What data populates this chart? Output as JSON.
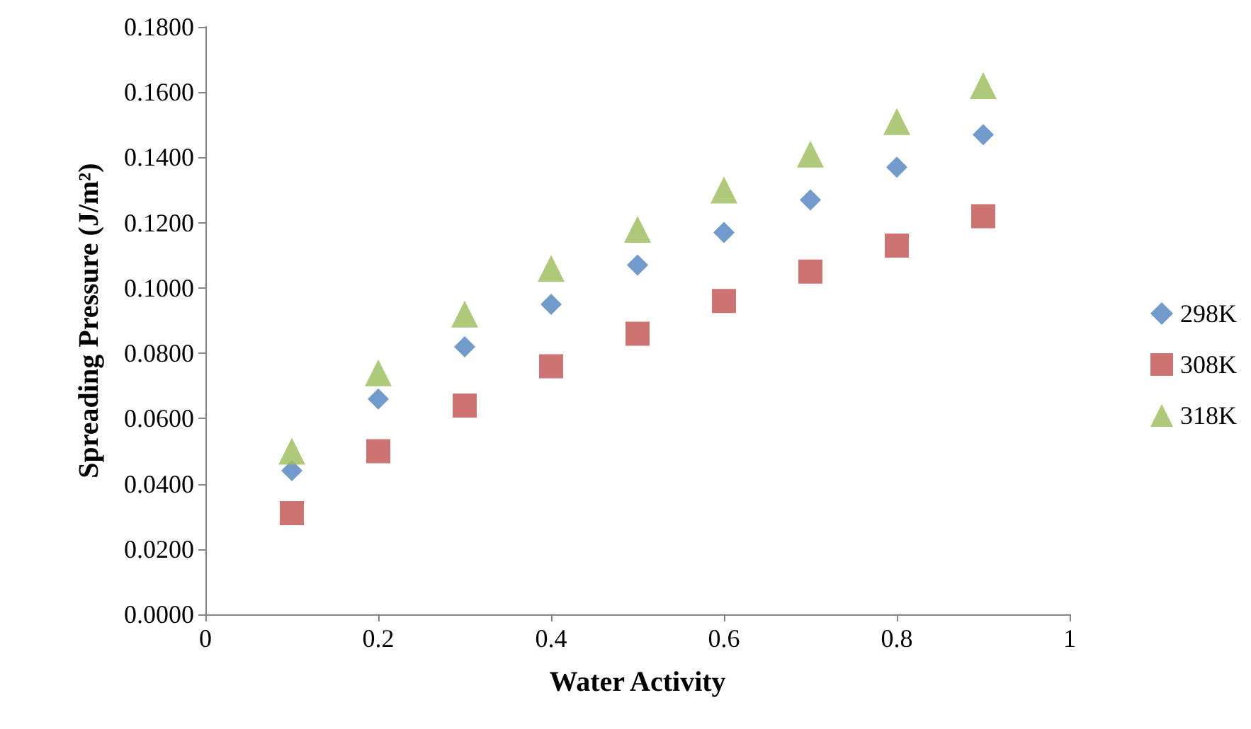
{
  "chart_data": {
    "type": "scatter",
    "xlabel": "Water Activity",
    "ylabel": "Spreading Pressure (J/m²)",
    "x": [
      0.1,
      0.2,
      0.3,
      0.4,
      0.5,
      0.6,
      0.7,
      0.8,
      0.9
    ],
    "series": [
      {
        "name": "298K",
        "color": "#4f81bd",
        "marker": "diamond",
        "values": [
          0.044,
          0.066,
          0.082,
          0.095,
          0.107,
          0.117,
          0.127,
          0.137,
          0.147
        ]
      },
      {
        "name": "308K",
        "color": "#c0504d",
        "marker": "square",
        "values": [
          0.031,
          0.05,
          0.064,
          0.076,
          0.086,
          0.096,
          0.105,
          0.113,
          0.122
        ]
      },
      {
        "name": "318K",
        "color": "#9bbb59",
        "marker": "triangle",
        "values": [
          0.05,
          0.074,
          0.092,
          0.106,
          0.118,
          0.13,
          0.141,
          0.151,
          0.162
        ]
      }
    ],
    "xlim": [
      0,
      1
    ],
    "xticks": [
      0,
      0.2,
      0.4,
      0.6,
      0.8,
      1
    ],
    "ylim": [
      0,
      0.18
    ],
    "yticks": [
      {
        "value": 0,
        "label": "0.0000"
      },
      {
        "value": 0.02,
        "label": "0.0200"
      },
      {
        "value": 0.04,
        "label": "0.0400"
      },
      {
        "value": 0.06,
        "label": "0.0600"
      },
      {
        "value": 0.08,
        "label": "0.0800"
      },
      {
        "value": 0.1,
        "label": "0.1000"
      },
      {
        "value": 0.12,
        "label": "0.1200"
      },
      {
        "value": 0.14,
        "label": "0.1400"
      },
      {
        "value": 0.16,
        "label": "0.1600"
      },
      {
        "value": 0.18,
        "label": "0.1800"
      }
    ],
    "grid": false,
    "legend": "right"
  }
}
